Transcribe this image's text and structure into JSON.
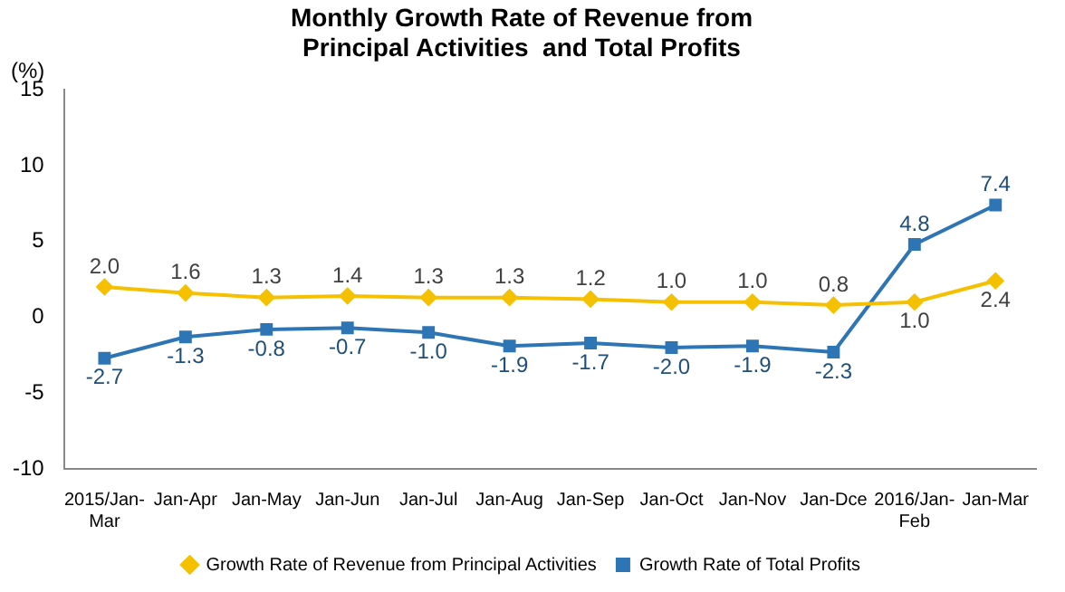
{
  "chart_data": {
    "type": "line",
    "title": "Monthly Growth Rate of Revenue from Principal Activities  and Total Profits",
    "ylabel": "(%)",
    "categories": [
      "2015/Jan-Mar",
      "Jan-Apr",
      "Jan-May",
      "Jan-Jun",
      "Jan-Jul",
      "Jan-Aug",
      "Jan-Sep",
      "Jan-Oct",
      "Jan-Nov",
      "Jan-Dce",
      "2016/Jan-Feb",
      "Jan-Mar"
    ],
    "series": [
      {
        "name": "Growth Rate of Revenue from Principal Activities",
        "color": "#f5c000",
        "marker": "diamond",
        "values": [
          2.0,
          1.6,
          1.3,
          1.4,
          1.3,
          1.3,
          1.2,
          1.0,
          1.0,
          0.8,
          1.0,
          2.4
        ],
        "value_labels": [
          "2.0",
          "1.6",
          "1.3",
          "1.4",
          "1.3",
          "1.3",
          "1.2",
          "1.0",
          "1.0",
          "0.8",
          "1.0",
          "2.4"
        ]
      },
      {
        "name": "Growth Rate of Total Profits",
        "color": "#2e75b6",
        "marker": "square",
        "values": [
          -2.7,
          -1.3,
          -0.8,
          -0.7,
          -1.0,
          -1.9,
          -1.7,
          -2.0,
          -1.9,
          -2.3,
          4.8,
          7.4
        ],
        "value_labels": [
          "-2.7",
          "-1.3",
          "-0.8",
          "-0.7",
          "-1.0",
          "-1.9",
          "-1.7",
          "-2.0",
          "-1.9",
          "-2.3",
          "4.8",
          "7.4"
        ]
      }
    ],
    "ylim": [
      -10,
      15
    ],
    "yticks": [
      -10,
      -5,
      0,
      5,
      10,
      15
    ],
    "grid": false,
    "legend": "bottom"
  }
}
